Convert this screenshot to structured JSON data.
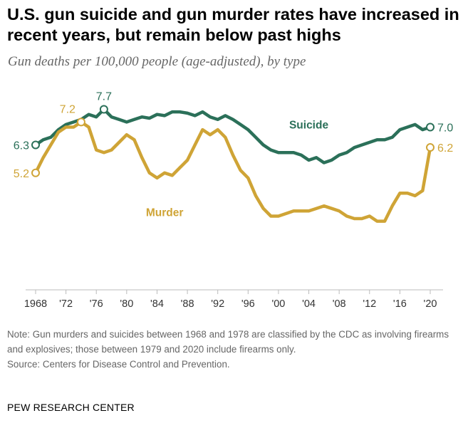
{
  "header": {
    "title": "U.S. gun suicide and gun murder rates have increased in recent years, but remain below past highs",
    "subtitle": "Gun deaths per 100,000 people (age-adjusted), by type"
  },
  "footer": {
    "note": "Note: Gun murders and suicides between 1968 and 1978 are classified by the CDC as involving firearms and explosives; those between 1979 and 2020 include firearms only.",
    "source": "Source: Centers for Disease Control and Prevention.",
    "brand": "PEW RESEARCH CENTER"
  },
  "colors": {
    "suicide": "#2b7059",
    "murder": "#cfa436",
    "axis": "#bbbbbb",
    "tick_text": "#333333"
  },
  "chart_data": {
    "type": "line",
    "title": "U.S. gun suicide and gun murder rates have increased in recent years, but remain below past highs",
    "subtitle": "Gun deaths per 100,000 people (age-adjusted), by type",
    "xlabel": "",
    "ylabel": "",
    "xlim": [
      1968,
      2020
    ],
    "ylim": [
      0,
      8.5
    ],
    "grid": false,
    "legend": "direct labels",
    "x": [
      1968,
      1969,
      1970,
      1971,
      1972,
      1973,
      1974,
      1975,
      1976,
      1977,
      1978,
      1979,
      1980,
      1981,
      1982,
      1983,
      1984,
      1985,
      1986,
      1987,
      1988,
      1989,
      1990,
      1991,
      1992,
      1993,
      1994,
      1995,
      1996,
      1997,
      1998,
      1999,
      2000,
      2001,
      2002,
      2003,
      2004,
      2005,
      2006,
      2007,
      2008,
      2009,
      2010,
      2011,
      2012,
      2013,
      2014,
      2015,
      2016,
      2017,
      2018,
      2019,
      2020
    ],
    "x_tick_values": [
      1968,
      1972,
      1976,
      1980,
      1984,
      1988,
      1992,
      1996,
      2000,
      2004,
      2008,
      2012,
      2016,
      2020
    ],
    "x_tick_labels": [
      "1968",
      "'72",
      "'76",
      "'80",
      "'84",
      "'88",
      "'92",
      "'96",
      "'00",
      "'04",
      "'08",
      "'12",
      "'16",
      "'20"
    ],
    "series": [
      {
        "name": "Suicide",
        "key": "suicide",
        "values": [
          6.3,
          6.5,
          6.6,
          6.9,
          7.1,
          7.2,
          7.3,
          7.5,
          7.4,
          7.7,
          7.4,
          7.3,
          7.2,
          7.3,
          7.4,
          7.35,
          7.5,
          7.45,
          7.6,
          7.6,
          7.55,
          7.45,
          7.6,
          7.4,
          7.3,
          7.45,
          7.3,
          7.1,
          6.9,
          6.6,
          6.3,
          6.1,
          6.0,
          6.0,
          6.0,
          5.9,
          5.7,
          5.8,
          5.6,
          5.7,
          5.9,
          6.0,
          6.2,
          6.3,
          6.4,
          6.5,
          6.5,
          6.6,
          6.9,
          7.0,
          7.1,
          6.9,
          7.0
        ],
        "labels": [
          {
            "year": 1968,
            "text": "6.3",
            "pos": "left"
          },
          {
            "year": 1977,
            "text": "7.7",
            "pos": "above"
          },
          {
            "year": 2020,
            "text": "7.0",
            "pos": "right"
          }
        ],
        "name_label_at": [
          2004,
          6.95
        ]
      },
      {
        "name": "Murder",
        "key": "murder",
        "values": [
          5.2,
          5.8,
          6.3,
          6.8,
          7.0,
          7.0,
          7.2,
          7.0,
          6.1,
          6.0,
          6.1,
          6.4,
          6.7,
          6.5,
          5.8,
          5.2,
          5.0,
          5.2,
          5.1,
          5.4,
          5.7,
          6.3,
          6.9,
          6.7,
          6.9,
          6.6,
          5.9,
          5.3,
          5.0,
          4.3,
          3.8,
          3.5,
          3.5,
          3.6,
          3.7,
          3.7,
          3.7,
          3.8,
          3.9,
          3.8,
          3.7,
          3.5,
          3.4,
          3.4,
          3.5,
          3.3,
          3.3,
          3.9,
          4.4,
          4.4,
          4.3,
          4.5,
          6.2
        ],
        "labels": [
          {
            "year": 1968,
            "text": "5.2",
            "pos": "left"
          },
          {
            "year": 1974,
            "text": "7.2",
            "pos": "above-left"
          },
          {
            "year": 2020,
            "text": "6.2",
            "pos": "right"
          }
        ],
        "name_label_at": [
          1985,
          3.5
        ]
      }
    ]
  }
}
